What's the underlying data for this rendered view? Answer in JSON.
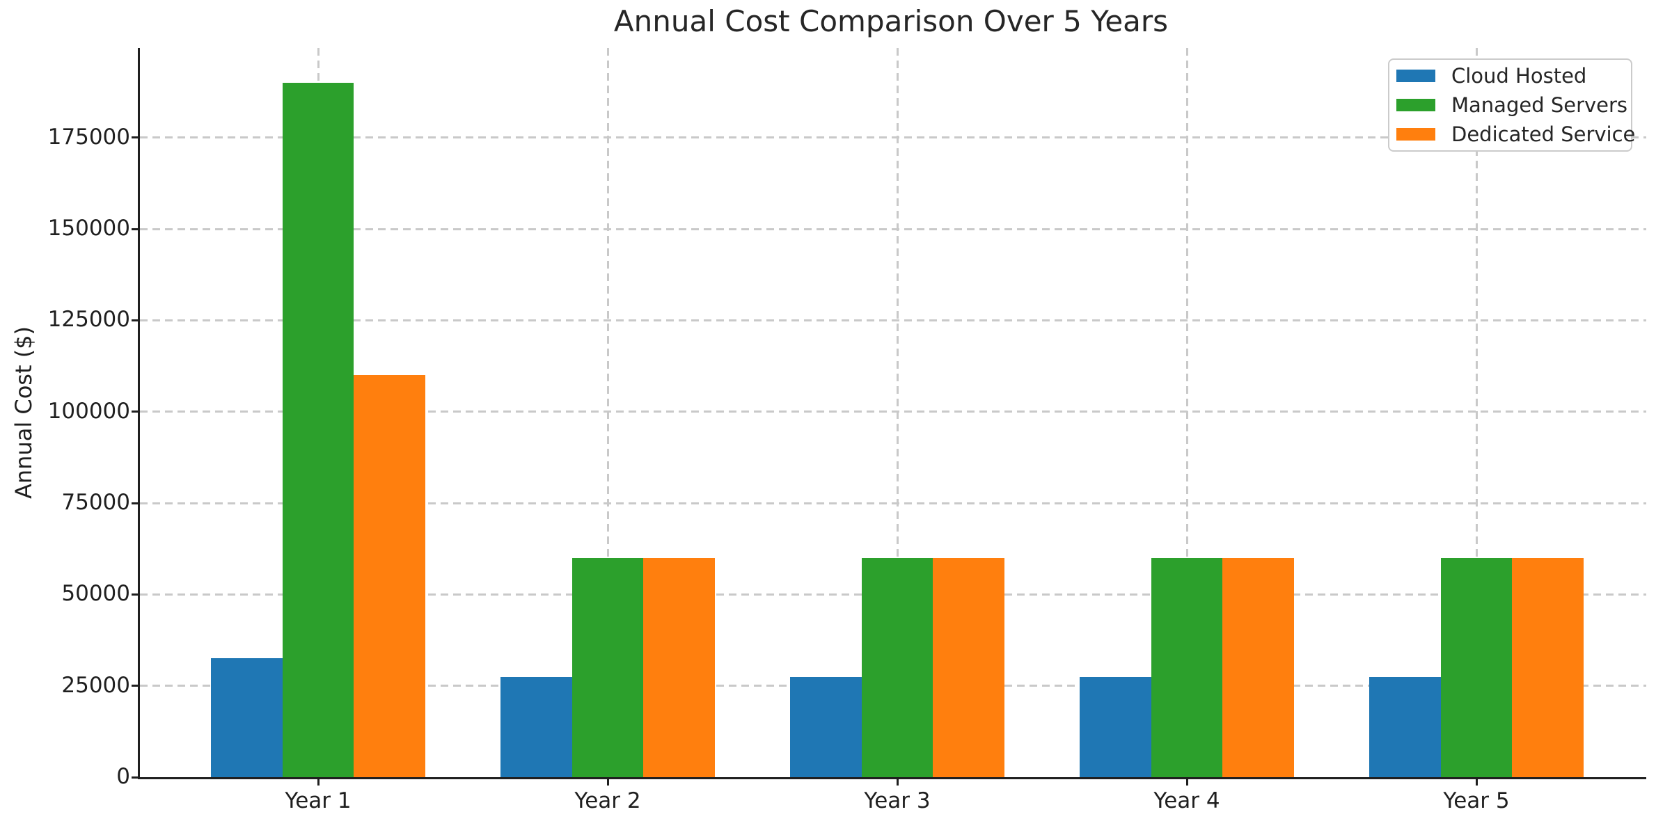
{
  "figure": {
    "background": "#ffffff"
  },
  "chart_data": {
    "type": "bar",
    "title": "Annual Cost Comparison Over 5 Years",
    "xlabel": "",
    "ylabel": "Annual Cost ($)",
    "categories": [
      "Year 1",
      "Year 2",
      "Year 3",
      "Year 4",
      "Year 5"
    ],
    "series": [
      {
        "name": "Cloud Hosted",
        "color": "#1f77b4",
        "values": [
          32500,
          27500,
          27500,
          27500,
          27500
        ]
      },
      {
        "name": "Managed Servers",
        "color": "#2ca02c",
        "values": [
          190000,
          60000,
          60000,
          60000,
          60000
        ]
      },
      {
        "name": "Dedicated Service",
        "color": "#ff7f0e",
        "values": [
          110000,
          60000,
          60000,
          60000,
          60000
        ]
      }
    ],
    "y_ticks": [
      0,
      25000,
      50000,
      75000,
      100000,
      125000,
      150000,
      175000
    ],
    "ylim": [
      0,
      199500
    ],
    "grid": {
      "show": true,
      "linestyle": "dashed",
      "color": "#c9c9c9"
    },
    "legend": {
      "position": "upper right",
      "border_color": "#cbcbcb"
    },
    "axis_color": "#1f1f1f",
    "text_color": "#262626"
  }
}
